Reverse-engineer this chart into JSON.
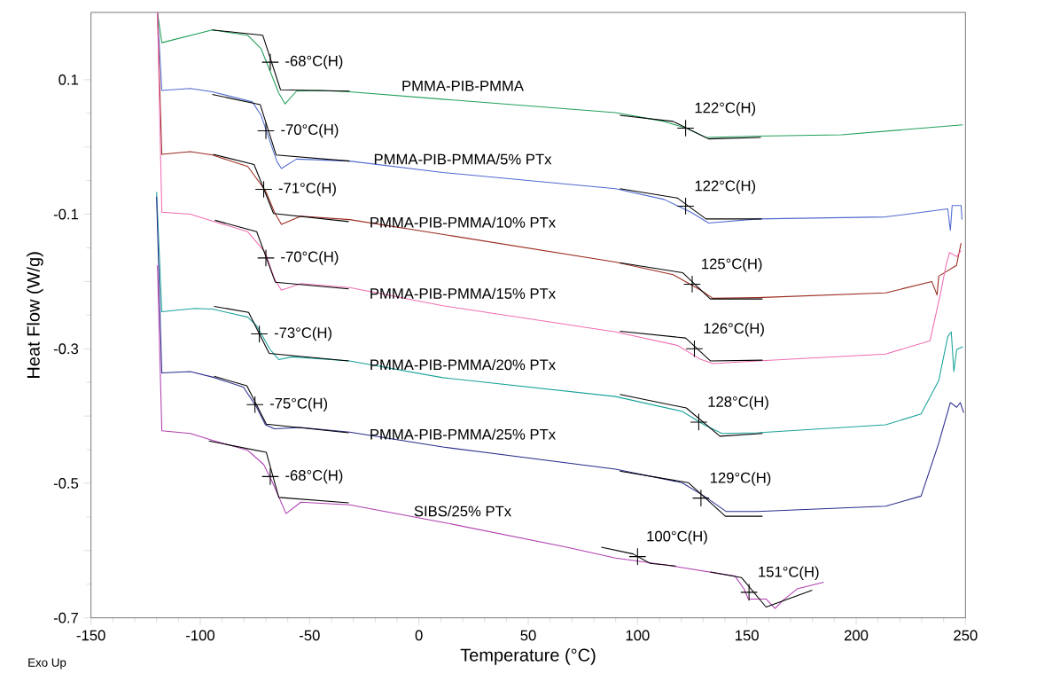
{
  "chart_data": {
    "type": "line",
    "xlabel": "Temperature (°C)",
    "ylabel": "Heat Flow (W/g)",
    "xlim": [
      -150,
      250
    ],
    "ylim": [
      -0.7,
      0.2
    ],
    "xticks": [
      -150,
      -100,
      -50,
      0,
      50,
      100,
      150,
      200,
      250
    ],
    "yticks": [
      0.1,
      {
        "value": 0,
        "label": null
      },
      -0.1,
      {
        "value": -0.2,
        "label": null
      },
      -0.3,
      {
        "value": -0.4,
        "label": null
      },
      -0.5,
      {
        "value": -0.6,
        "label": null
      },
      -0.7
    ],
    "grid": false,
    "series": [
      {
        "name": "PMMA-PIB-PMMA",
        "color": "#22a05a",
        "x": [
          -119.6,
          -117.6,
          -94.5,
          -78.3,
          -72.2,
          -68.1,
          -64.1,
          -61.2,
          -56.0,
          -45.8,
          -31.7,
          10.9,
          89.9,
          112.2,
          122.3,
          131.3,
          154.8,
          193.3,
          248.8
        ],
        "values": [
          0.2,
          0.155,
          0.174,
          0.166,
          0.146,
          0.113,
          0.08,
          0.064,
          0.083,
          0.084,
          0.082,
          0.071,
          0.051,
          0.038,
          0.028,
          0.014,
          0.016,
          0.018,
          0.033
        ]
      },
      {
        "name": "PMMA-PIB-PMMA/5% PTx",
        "color": "#4f6bd0",
        "x": [
          -119.6,
          -117.6,
          -104.6,
          -94.5,
          -76.2,
          -72.2,
          -68.1,
          -64.9,
          -62.9,
          -56.0,
          -31.7,
          10.9,
          89.9,
          112.2,
          124.4,
          132.5,
          154.8,
          213.5,
          241.9,
          243.1,
          243.9,
          248.0,
          248.4
        ],
        "values": [
          0.2,
          0.084,
          0.087,
          0.082,
          0.067,
          0.047,
          0.008,
          -0.022,
          -0.032,
          -0.018,
          -0.021,
          -0.038,
          -0.062,
          -0.078,
          -0.097,
          -0.113,
          -0.107,
          -0.104,
          -0.092,
          -0.124,
          -0.087,
          -0.087,
          -0.108
        ]
      },
      {
        "name": "PMMA-PIB-PMMA/10% PTx",
        "color": "#9b2a1e",
        "x": [
          -119.6,
          -117.6,
          -104.6,
          -94.5,
          -78.3,
          -70.2,
          -66.1,
          -62.9,
          -54.0,
          -31.7,
          10.9,
          89.9,
          116.3,
          128.4,
          134.5,
          154.8,
          213.5,
          234.6,
          237.0,
          237.8,
          245.9,
          248.0
        ],
        "values": [
          0.2,
          -0.011,
          -0.007,
          -0.012,
          -0.029,
          -0.065,
          -0.097,
          -0.115,
          -0.103,
          -0.108,
          -0.13,
          -0.171,
          -0.19,
          -0.212,
          -0.225,
          -0.224,
          -0.217,
          -0.2,
          -0.22,
          -0.192,
          -0.176,
          -0.143
        ]
      },
      {
        "name": "PMMA-PIB-PMMA/15% PTx",
        "color": "#f06eb4",
        "x": [
          -119.6,
          -117.6,
          -104.6,
          -92.5,
          -78.3,
          -70.2,
          -66.1,
          -62.9,
          -54.0,
          -31.7,
          10.9,
          89.9,
          118.3,
          128.4,
          134.5,
          154.8,
          213.5,
          233.8,
          238.7,
          241.1,
          242.7,
          246.0,
          248.0
        ],
        "values": [
          0.2,
          -0.097,
          -0.1,
          -0.112,
          -0.126,
          -0.157,
          -0.196,
          -0.213,
          -0.203,
          -0.209,
          -0.236,
          -0.275,
          -0.295,
          -0.315,
          -0.322,
          -0.318,
          -0.308,
          -0.288,
          -0.216,
          -0.176,
          -0.157,
          -0.163,
          -0.154
        ]
      },
      {
        "name": "PMMA-PIB-PMMA/20% PTx",
        "color": "#1aa39a",
        "x": [
          -120.0,
          -117.6,
          -102.6,
          -94.5,
          -78.3,
          -74.2,
          -68.1,
          -64.1,
          -58.0,
          -31.7,
          10.9,
          89.9,
          120.3,
          130.5,
          138.6,
          154.8,
          213.5,
          229.7,
          237.8,
          241.9,
          243.5,
          244.7,
          246.0,
          248.8
        ],
        "values": [
          -0.067,
          -0.245,
          -0.24,
          -0.241,
          -0.253,
          -0.266,
          -0.301,
          -0.316,
          -0.312,
          -0.318,
          -0.343,
          -0.371,
          -0.393,
          -0.413,
          -0.426,
          -0.425,
          -0.413,
          -0.397,
          -0.347,
          -0.282,
          -0.275,
          -0.334,
          -0.301,
          -0.297
        ]
      },
      {
        "name": "PMMA-PIB-PMMA/25% PTx",
        "color": "#2b2d8c",
        "x": [
          -120.0,
          -117.6,
          -104.6,
          -94.5,
          -80.3,
          -74.2,
          -70.2,
          -66.1,
          -54.0,
          -31.7,
          10.9,
          89.9,
          120.3,
          130.5,
          140.6,
          154.8,
          213.5,
          229.7,
          237.8,
          243.1,
          246.0,
          247.6,
          249.2
        ],
        "values": [
          -0.074,
          -0.336,
          -0.334,
          -0.342,
          -0.357,
          -0.387,
          -0.413,
          -0.419,
          -0.417,
          -0.424,
          -0.446,
          -0.479,
          -0.499,
          -0.519,
          -0.542,
          -0.542,
          -0.534,
          -0.519,
          -0.44,
          -0.38,
          -0.387,
          -0.38,
          -0.395
        ]
      },
      {
        "name": "SIBS/25% PTx",
        "color": "#b040b0",
        "x": [
          -119.6,
          -117.6,
          -104.6,
          -94.5,
          -78.3,
          -71.0,
          -66.9,
          -60.8,
          -54.0,
          -31.7,
          10.9,
          67.6,
          89.9,
          112.2,
          144.6,
          148.7,
          150.7,
          158.8,
          162.9,
          166.9,
          173.0,
          185.2
        ],
        "values": [
          -0.176,
          -0.422,
          -0.426,
          -0.436,
          -0.451,
          -0.472,
          -0.499,
          -0.545,
          -0.528,
          -0.532,
          -0.558,
          -0.595,
          -0.611,
          -0.621,
          -0.638,
          -0.657,
          -0.672,
          -0.672,
          -0.686,
          -0.673,
          -0.657,
          -0.647
        ]
      },
      {
        "color": "#000000",
        "x": [
          -94.5,
          -71.4,
          -63.3,
          -31.7
        ],
        "values": [
          0.174,
          0.166,
          0.085,
          0.083
        ]
      },
      {
        "color": "#000000",
        "x": [
          91.9,
          116.3,
          132.5,
          156.4
        ],
        "values": [
          0.047,
          0.038,
          0.012,
          0.014
        ]
      },
      {
        "color": "#000000",
        "x": [
          -94.5,
          -72.6,
          -65.3,
          -31.7
        ],
        "values": [
          0.078,
          0.063,
          -0.012,
          -0.021
        ]
      },
      {
        "color": "#000000",
        "x": [
          91.9,
          118.3,
          131.3,
          156.8
        ],
        "values": [
          -0.062,
          -0.076,
          -0.107,
          -0.107
        ]
      },
      {
        "color": "#000000",
        "x": [
          -94.1,
          -75.4,
          -66.5,
          -32.1
        ],
        "values": [
          -0.011,
          -0.026,
          -0.099,
          -0.111
        ]
      },
      {
        "color": "#000000",
        "x": [
          91.9,
          120.7,
          133.3,
          157.2
        ],
        "values": [
          -0.172,
          -0.187,
          -0.226,
          -0.226
        ]
      },
      {
        "color": "#000000",
        "x": [
          -93.3,
          -74.2,
          -65.7,
          -32.1
        ],
        "values": [
          -0.109,
          -0.126,
          -0.201,
          -0.211
        ]
      },
      {
        "color": "#000000",
        "x": [
          91.9,
          122.0,
          133.3,
          157.2
        ],
        "values": [
          -0.274,
          -0.284,
          -0.318,
          -0.317
        ]
      },
      {
        "color": "#000000",
        "x": [
          -93.7,
          -77.9,
          -68.5,
          -32.1
        ],
        "values": [
          -0.237,
          -0.246,
          -0.307,
          -0.318
        ]
      },
      {
        "color": "#000000",
        "x": [
          91.9,
          122.3,
          137.7,
          157.2
        ],
        "values": [
          -0.368,
          -0.388,
          -0.43,
          -0.426
        ]
      },
      {
        "color": "#000000",
        "x": [
          -93.7,
          -78.7,
          -69.8,
          -32.1
        ],
        "values": [
          -0.341,
          -0.355,
          -0.412,
          -0.425
        ]
      },
      {
        "color": "#000000",
        "x": [
          91.9,
          123.2,
          140.2,
          157.2
        ],
        "values": [
          -0.482,
          -0.499,
          -0.549,
          -0.549
        ]
      },
      {
        "color": "#000000",
        "x": [
          -96.1,
          -69.8,
          -64.1,
          -32.1
        ],
        "values": [
          -0.437,
          -0.454,
          -0.521,
          -0.529
        ]
      },
      {
        "color": "#000000",
        "x": [
          83.4,
          98.0,
          105.7,
          117.5
        ],
        "values": [
          -0.595,
          -0.605,
          -0.619,
          -0.623
        ]
      },
      {
        "color": "#000000",
        "x": [
          133.3,
          147.5,
          158.8,
          179.9
        ],
        "values": [
          -0.632,
          -0.64,
          -0.684,
          -0.659
        ]
      }
    ],
    "annotations": [
      {
        "text": "-68°C(H)",
        "x": -68,
        "y": 0.126
      },
      {
        "text": "-70°C(H)",
        "x": -70,
        "y": 0.024
      },
      {
        "text": "-71°C(H)",
        "x": -71,
        "y": -0.063
      },
      {
        "text": "-70°C(H)",
        "x": -70,
        "y": -0.165
      },
      {
        "text": "-73°C(H)",
        "x": -73,
        "y": -0.278
      },
      {
        "text": "-75°C(H)",
        "x": -75,
        "y": -0.383
      },
      {
        "text": "-68°C(H)",
        "x": -68,
        "y": -0.49
      },
      {
        "text": "122°C(H)",
        "x": 122,
        "y": 0.028
      },
      {
        "text": "122°C(H)",
        "x": 122,
        "y": -0.088
      },
      {
        "text": "125°C(H)",
        "x": 125,
        "y": -0.204
      },
      {
        "text": "126°C(H)",
        "x": 126,
        "y": -0.3
      },
      {
        "text": "128°C(H)",
        "x": 128,
        "y": -0.409
      },
      {
        "text": "129°C(H)",
        "x": 129,
        "y": -0.522
      },
      {
        "text": "100°C(H)",
        "x": 100,
        "y": -0.609
      },
      {
        "text": "151°C(H)",
        "x": 151,
        "y": -0.662
      },
      "Exo Up"
    ]
  }
}
